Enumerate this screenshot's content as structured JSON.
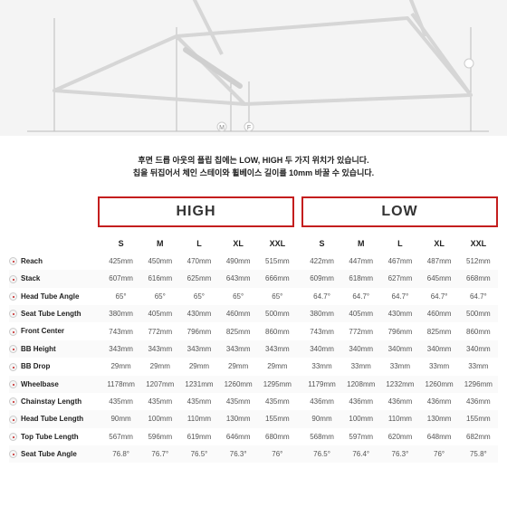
{
  "description": {
    "line1": "후면 드롭 아웃의 플립 칩에는 LOW, HIGH 두 가지 위치가 있습니다.",
    "line2": "칩을 뒤집어서 체인 스테이와 휠베이스 길이를 10mm 바꿀 수 있습니다."
  },
  "groups": {
    "high": "HIGH",
    "low": "LOW"
  },
  "sizes": [
    "S",
    "M",
    "L",
    "XL",
    "XXL"
  ],
  "rows": [
    {
      "label": "Reach",
      "high": [
        "425mm",
        "450mm",
        "470mm",
        "490mm",
        "515mm"
      ],
      "low": [
        "422mm",
        "447mm",
        "467mm",
        "487mm",
        "512mm"
      ]
    },
    {
      "label": "Stack",
      "high": [
        "607mm",
        "616mm",
        "625mm",
        "643mm",
        "666mm"
      ],
      "low": [
        "609mm",
        "618mm",
        "627mm",
        "645mm",
        "668mm"
      ]
    },
    {
      "label": "Head Tube Angle",
      "high": [
        "65°",
        "65°",
        "65°",
        "65°",
        "65°"
      ],
      "low": [
        "64.7°",
        "64.7°",
        "64.7°",
        "64.7°",
        "64.7°"
      ]
    },
    {
      "label": "Seat Tube Length",
      "high": [
        "380mm",
        "405mm",
        "430mm",
        "460mm",
        "500mm"
      ],
      "low": [
        "380mm",
        "405mm",
        "430mm",
        "460mm",
        "500mm"
      ]
    },
    {
      "label": "Front Center",
      "high": [
        "743mm",
        "772mm",
        "796mm",
        "825mm",
        "860mm"
      ],
      "low": [
        "743mm",
        "772mm",
        "796mm",
        "825mm",
        "860mm"
      ]
    },
    {
      "label": "BB Height",
      "high": [
        "343mm",
        "343mm",
        "343mm",
        "343mm",
        "343mm"
      ],
      "low": [
        "340mm",
        "340mm",
        "340mm",
        "340mm",
        "340mm"
      ]
    },
    {
      "label": "BB Drop",
      "high": [
        "29mm",
        "29mm",
        "29mm",
        "29mm",
        "29mm"
      ],
      "low": [
        "33mm",
        "33mm",
        "33mm",
        "33mm",
        "33mm"
      ]
    },
    {
      "label": "Wheelbase",
      "high": [
        "1178mm",
        "1207mm",
        "1231mm",
        "1260mm",
        "1295mm"
      ],
      "low": [
        "1179mm",
        "1208mm",
        "1232mm",
        "1260mm",
        "1296mm"
      ]
    },
    {
      "label": "Chainstay Length",
      "high": [
        "435mm",
        "435mm",
        "435mm",
        "435mm",
        "435mm"
      ],
      "low": [
        "436mm",
        "436mm",
        "436mm",
        "436mm",
        "436mm"
      ]
    },
    {
      "label": "Head Tube Length",
      "high": [
        "90mm",
        "100mm",
        "110mm",
        "130mm",
        "155mm"
      ],
      "low": [
        "90mm",
        "100mm",
        "110mm",
        "130mm",
        "155mm"
      ]
    },
    {
      "label": "Top Tube Length",
      "high": [
        "567mm",
        "596mm",
        "619mm",
        "646mm",
        "680mm"
      ],
      "low": [
        "568mm",
        "597mm",
        "620mm",
        "648mm",
        "682mm"
      ]
    },
    {
      "label": "Seat Tube Angle",
      "high": [
        "76.8°",
        "76.7°",
        "76.5°",
        "76.3°",
        "76°"
      ],
      "low": [
        "76.5°",
        "76.4°",
        "76.3°",
        "76°",
        "75.8°"
      ]
    }
  ],
  "colors": {
    "border_accent": "#c41e1e",
    "diagram_bg": "#f4f4f4",
    "text": "#333"
  }
}
